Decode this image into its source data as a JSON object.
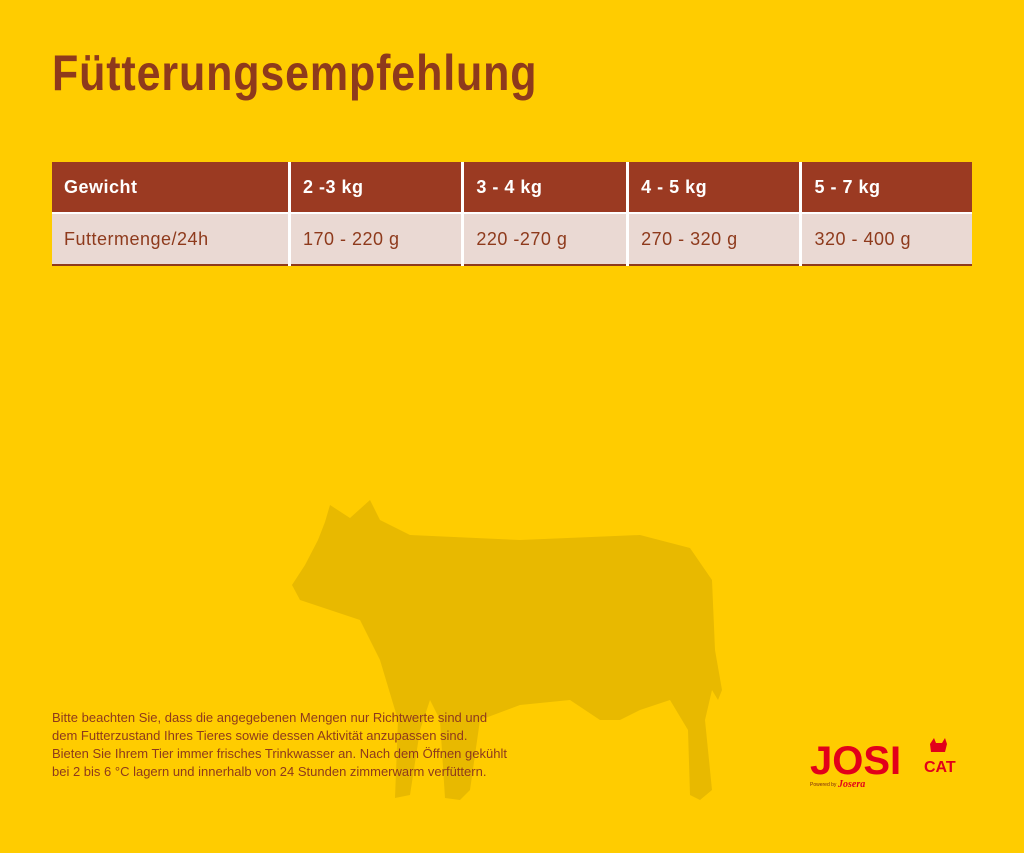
{
  "title": "Fütterungsempfehlung",
  "table": {
    "header": [
      "Gewicht",
      "2 -3 kg",
      "3 - 4 kg",
      "4 - 5 kg",
      "5 - 7 kg"
    ],
    "rows": [
      [
        "Futtermenge/24h",
        "170 - 220 g",
        "220 -270 g",
        "270 - 320 g",
        "320 - 400 g"
      ]
    ]
  },
  "note": [
    "Bitte beachten Sie, dass die angegebenen Mengen nur Richtwerte sind und",
    "dem Futterzustand Ihres Tieres sowie dessen Aktivität anzupassen sind.",
    "Bieten Sie Ihrem Tier immer frisches Trinkwasser an. Nach dem Öffnen gekühlt",
    "bei 2 bis 6 °C lagern und innerhalb von 24 Stunden zimmerwarm verfüttern."
  ],
  "logo": {
    "brand": "JOSI",
    "sub": "CAT",
    "powered": "Powered by",
    "maker": "Josera"
  }
}
